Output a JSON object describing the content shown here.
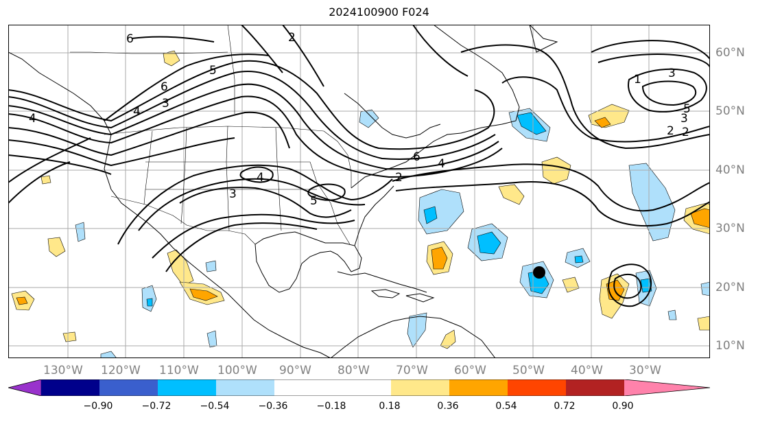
{
  "title": "2024100900 F024",
  "lon_labels": [
    "130°W",
    "120°W",
    "110°W",
    "100°W",
    "90°W",
    "80°W",
    "70°W",
    "60°W",
    "50°W",
    "40°W",
    "30°W"
  ],
  "lat_labels": [
    "60°N",
    "50°N",
    "40°N",
    "30°N",
    "20°N",
    "10°N"
  ],
  "contour_labels": [
    "6",
    "5",
    "4",
    "3",
    "2",
    "4",
    "3",
    "5",
    "6",
    "4",
    "2",
    "6",
    "5",
    "4",
    "3",
    "2",
    "1",
    "3",
    "2"
  ],
  "colorbar": {
    "colors": [
      "#9932cc",
      "#00008b",
      "#3a5fcd",
      "#00bfff",
      "#afe0fb",
      "#ffffff",
      "#ffe88a",
      "#ffa500",
      "#ff4500",
      "#b22222",
      "#ff82ab"
    ],
    "ticks": [
      "−0.90",
      "−0.72",
      "−0.54",
      "−0.36",
      "−0.18",
      "0.18",
      "0.36",
      "0.54",
      "0.72",
      "0.90"
    ]
  }
}
